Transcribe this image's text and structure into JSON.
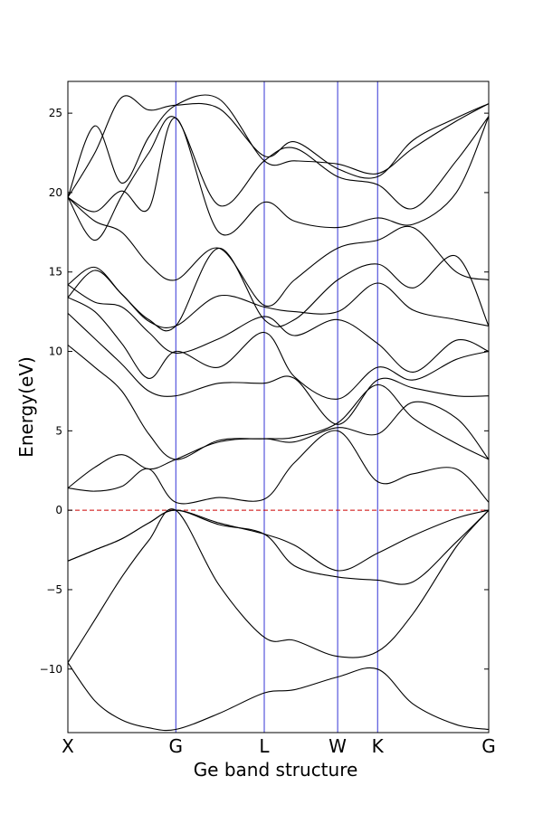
{
  "chart_data": {
    "type": "line",
    "xlabel": "Ge band structure",
    "ylabel": "Energy(eV)",
    "ylim": [
      -14,
      27
    ],
    "xlim": [
      0,
      3.9
    ],
    "yticks": [
      -10,
      -5,
      0,
      5,
      10,
      15,
      20,
      25
    ],
    "kpoints": [
      {
        "label": "X",
        "x": 0.0
      },
      {
        "label": "G",
        "x": 1.0
      },
      {
        "label": "L",
        "x": 1.82
      },
      {
        "label": "W",
        "x": 2.5
      },
      {
        "label": "K",
        "x": 2.87
      },
      {
        "label": "G",
        "x": 3.9
      }
    ],
    "fermi_level": 0,
    "colors": {
      "bands": "#000000",
      "kpoint_lines": "#0000cc",
      "fermi_line": "#cc0000"
    },
    "series": [
      {
        "x": [
          0,
          0.25,
          0.5,
          0.75,
          1.0,
          1.4,
          1.82,
          2.1,
          2.5,
          2.87,
          3.2,
          3.6,
          3.9
        ],
        "y": [
          -9.6,
          -12.0,
          -13.2,
          -13.7,
          -13.8,
          -12.8,
          -11.5,
          -11.3,
          -10.5,
          -10.0,
          -12.2,
          -13.5,
          -13.8
        ]
      },
      {
        "x": [
          0,
          0.25,
          0.5,
          0.75,
          1.0,
          1.4,
          1.82,
          2.1,
          2.5,
          2.87,
          3.2,
          3.6,
          3.9
        ],
        "y": [
          -9.6,
          -6.9,
          -4.2,
          -1.9,
          0,
          -4.7,
          -8.0,
          -8.2,
          -9.2,
          -8.9,
          -6.5,
          -2.3,
          0
        ]
      },
      {
        "x": [
          0,
          0.25,
          0.5,
          0.75,
          1.0,
          1.4,
          1.82,
          2.1,
          2.5,
          2.87,
          3.2,
          3.6,
          3.9
        ],
        "y": [
          -3.2,
          -2.5,
          -1.8,
          -0.8,
          0,
          -0.8,
          -1.5,
          -2.2,
          -3.8,
          -2.7,
          -1.6,
          -0.5,
          0
        ]
      },
      {
        "x": [
          0,
          0.25,
          0.5,
          0.75,
          1.0,
          1.4,
          1.82,
          2.1,
          2.5,
          2.87,
          3.2,
          3.6,
          3.9
        ],
        "y": [
          -3.2,
          -2.5,
          -1.8,
          -0.8,
          0,
          -0.9,
          -1.5,
          -3.5,
          -4.2,
          -4.4,
          -4.5,
          -2.0,
          0
        ]
      },
      {
        "x": [
          0,
          0.25,
          0.5,
          0.75,
          1.0,
          1.4,
          1.82,
          2.1,
          2.5,
          2.87,
          3.2,
          3.6,
          3.9
        ],
        "y": [
          1.4,
          1.2,
          1.5,
          2.6,
          0.5,
          0.8,
          0.7,
          3.0,
          5.0,
          1.8,
          2.3,
          2.6,
          0.5
        ]
      },
      {
        "x": [
          0,
          0.25,
          0.5,
          0.75,
          1.0,
          1.4,
          1.82,
          2.1,
          2.5,
          2.87,
          3.2,
          3.6,
          3.9
        ],
        "y": [
          1.4,
          2.7,
          3.5,
          2.6,
          3.2,
          4.3,
          4.5,
          4.3,
          5.2,
          4.8,
          6.8,
          5.8,
          3.2
        ]
      },
      {
        "x": [
          0,
          0.25,
          0.5,
          0.75,
          1.0,
          1.4,
          1.82,
          2.1,
          2.5,
          2.87,
          3.2,
          3.6,
          3.9
        ],
        "y": [
          10.4,
          9.0,
          7.5,
          4.8,
          3.2,
          4.4,
          4.5,
          4.6,
          5.5,
          7.9,
          5.8,
          4.2,
          3.2
        ]
      },
      {
        "x": [
          0,
          0.25,
          0.5,
          0.75,
          1.0,
          1.4,
          1.82,
          2.1,
          2.5,
          2.87,
          3.2,
          3.6,
          3.9
        ],
        "y": [
          12.4,
          10.8,
          9.2,
          7.5,
          7.2,
          8.0,
          8.0,
          8.3,
          5.4,
          8.2,
          7.7,
          7.2,
          7.2
        ]
      },
      {
        "x": [
          0,
          0.25,
          0.5,
          0.75,
          1.0,
          1.4,
          1.82,
          2.1,
          2.5,
          2.87,
          3.2,
          3.6,
          3.9
        ],
        "y": [
          13.4,
          12.5,
          10.5,
          8.3,
          10.0,
          9.0,
          11.2,
          8.4,
          7.0,
          9.0,
          8.2,
          9.5,
          10.0
        ]
      },
      {
        "x": [
          0,
          0.25,
          0.5,
          0.75,
          1.0,
          1.4,
          1.82,
          2.1,
          2.5,
          2.87,
          3.2,
          3.6,
          3.9
        ],
        "y": [
          14.2,
          13.1,
          12.8,
          11.2,
          9.9,
          10.8,
          12.2,
          11.0,
          12.0,
          10.5,
          8.7,
          10.7,
          10.0
        ]
      },
      {
        "x": [
          0,
          0.25,
          0.5,
          0.75,
          1.0,
          1.4,
          1.82,
          2.1,
          2.5,
          2.87,
          3.2,
          3.6,
          3.9
        ],
        "y": [
          13.4,
          15.1,
          13.6,
          11.9,
          11.6,
          13.5,
          12.8,
          12.5,
          12.5,
          14.3,
          12.6,
          12.0,
          11.6
        ]
      },
      {
        "x": [
          0,
          0.25,
          0.5,
          0.75,
          1.0,
          1.4,
          1.82,
          2.1,
          2.5,
          2.87,
          3.2,
          3.6,
          3.9
        ],
        "y": [
          14.2,
          15.3,
          13.6,
          12.0,
          11.6,
          16.5,
          12.0,
          12.0,
          14.5,
          15.5,
          14.0,
          16.0,
          11.6
        ]
      },
      {
        "x": [
          0,
          0.25,
          0.5,
          0.75,
          1.0,
          1.4,
          1.82,
          2.1,
          2.5,
          2.87,
          3.2,
          3.6,
          3.9
        ],
        "y": [
          19.7,
          18.2,
          17.5,
          15.5,
          14.5,
          16.5,
          12.9,
          14.5,
          16.5,
          17.0,
          17.8,
          15.0,
          14.5
        ]
      },
      {
        "x": [
          0,
          0.25,
          0.5,
          0.75,
          1.0,
          1.4,
          1.82,
          2.1,
          2.5,
          2.87,
          3.2,
          3.6,
          3.9
        ],
        "y": [
          19.7,
          18.8,
          20.1,
          19.0,
          24.7,
          17.5,
          19.4,
          18.2,
          17.8,
          18.4,
          18.0,
          20.0,
          24.8
        ]
      },
      {
        "x": [
          0,
          0.25,
          0.5,
          0.75,
          1.0,
          1.4,
          1.82,
          2.1,
          2.5,
          2.87,
          3.2,
          3.6,
          3.9
        ],
        "y": [
          19.7,
          17.0,
          19.8,
          22.5,
          24.7,
          19.2,
          22.0,
          22.8,
          21.0,
          20.5,
          19.0,
          22.0,
          24.8
        ]
      },
      {
        "x": [
          0,
          0.25,
          0.5,
          0.75,
          1.0,
          1.4,
          1.82,
          2.1,
          2.5,
          2.87,
          3.2,
          3.6,
          3.9
        ],
        "y": [
          19.7,
          24.2,
          20.6,
          23.5,
          25.5,
          25.9,
          22.0,
          22.0,
          21.8,
          21.2,
          22.8,
          24.5,
          25.6
        ]
      },
      {
        "x": [
          0,
          0.25,
          0.5,
          0.75,
          1.0,
          1.4,
          1.82,
          2.1,
          2.5,
          2.87,
          3.2,
          3.6,
          3.9
        ],
        "y": [
          19.7,
          22.5,
          26.0,
          25.2,
          25.5,
          25.3,
          22.3,
          23.2,
          21.5,
          21.0,
          23.3,
          24.7,
          25.6
        ]
      }
    ]
  }
}
